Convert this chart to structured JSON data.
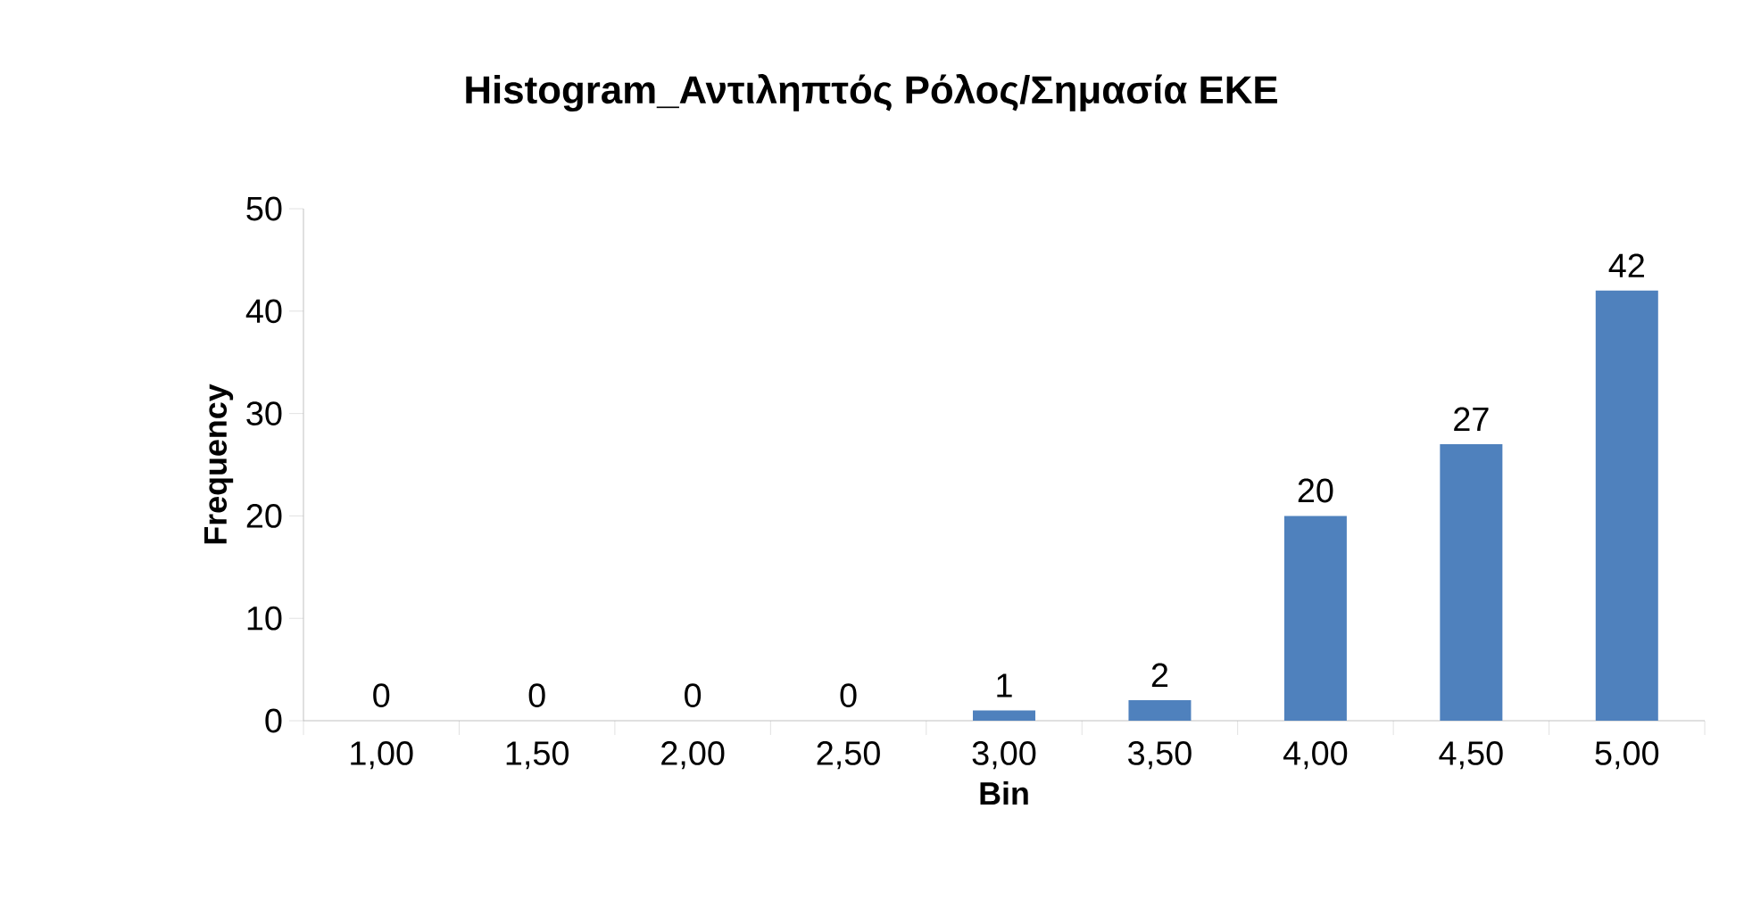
{
  "chart_data": {
    "type": "bar",
    "title": "Histogram_Αντιληπτός Ρόλος/Σημασία ΕΚΕ",
    "xlabel": "Bin",
    "ylabel": "Frequency",
    "categories": [
      "1,00",
      "1,50",
      "2,00",
      "2,50",
      "3,00",
      "3,50",
      "4,00",
      "4,50",
      "5,00"
    ],
    "values": [
      0,
      0,
      0,
      0,
      1,
      2,
      20,
      27,
      42
    ],
    "color": "#4f81bd",
    "ylim": [
      0,
      50
    ],
    "yticks": [
      0,
      10,
      20,
      30,
      40,
      50
    ],
    "data_labels": true,
    "grid": false
  }
}
